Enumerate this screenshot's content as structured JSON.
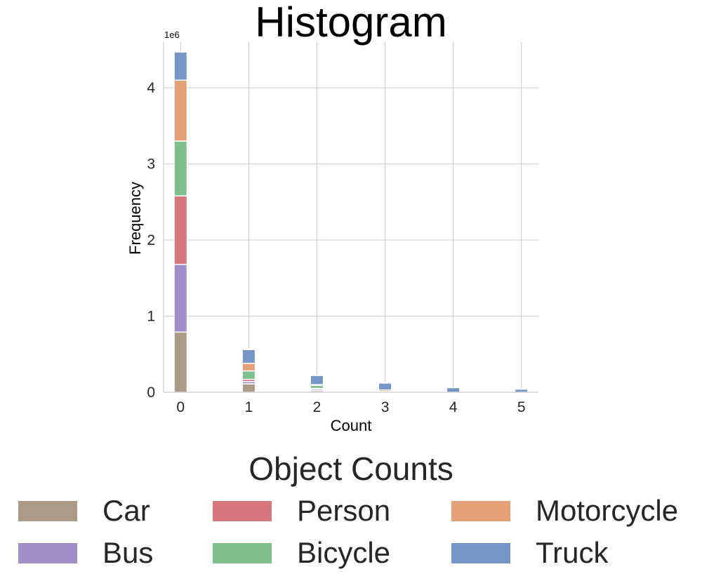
{
  "chart_data": {
    "type": "bar",
    "stacked": true,
    "title": "Histogram",
    "xlabel": "Count",
    "ylabel": "Frequency",
    "y_offset_label": "1e6",
    "x_ticks": [
      "0",
      "1",
      "2",
      "3",
      "4",
      "5"
    ],
    "y_ticks": [
      "0",
      "1",
      "2",
      "3",
      "4"
    ],
    "xlim": [
      -0.25,
      5.25
    ],
    "ylim": [
      0,
      4.6
    ],
    "grid": true,
    "categories": [
      0,
      1,
      2,
      3,
      4,
      5
    ],
    "series": [
      {
        "name": "Car",
        "color": "#ab9a85",
        "values": [
          0.79,
          0.11,
          0.02,
          0.0,
          0.0,
          0.0
        ]
      },
      {
        "name": "Bus",
        "color": "#a08fc7",
        "values": [
          0.89,
          0.03,
          0.02,
          0.0,
          0.0,
          0.0
        ]
      },
      {
        "name": "Person",
        "color": "#d6767d",
        "values": [
          0.9,
          0.03,
          0.01,
          0.0,
          0.0,
          0.0
        ]
      },
      {
        "name": "Bicycle",
        "color": "#7fbf8e",
        "values": [
          0.72,
          0.11,
          0.04,
          0.01,
          0.0,
          0.0
        ]
      },
      {
        "name": "Motorcycle",
        "color": "#e6a077",
        "values": [
          0.8,
          0.1,
          0.01,
          0.02,
          0.0,
          0.0
        ]
      },
      {
        "name": "Truck",
        "color": "#7595c6",
        "values": [
          0.37,
          0.18,
          0.12,
          0.09,
          0.06,
          0.04
        ]
      }
    ]
  },
  "legend": {
    "title": "Object Counts",
    "placement": "bottom-center",
    "entries": [
      {
        "label": "Car",
        "color": "#ab9a85"
      },
      {
        "label": "Person",
        "color": "#d6767d"
      },
      {
        "label": "Motorcycle",
        "color": "#e6a077"
      },
      {
        "label": "Bus",
        "color": "#a08fc7"
      },
      {
        "label": "Bicycle",
        "color": "#7fbf8e"
      },
      {
        "label": "Truck",
        "color": "#7595c6"
      }
    ]
  }
}
